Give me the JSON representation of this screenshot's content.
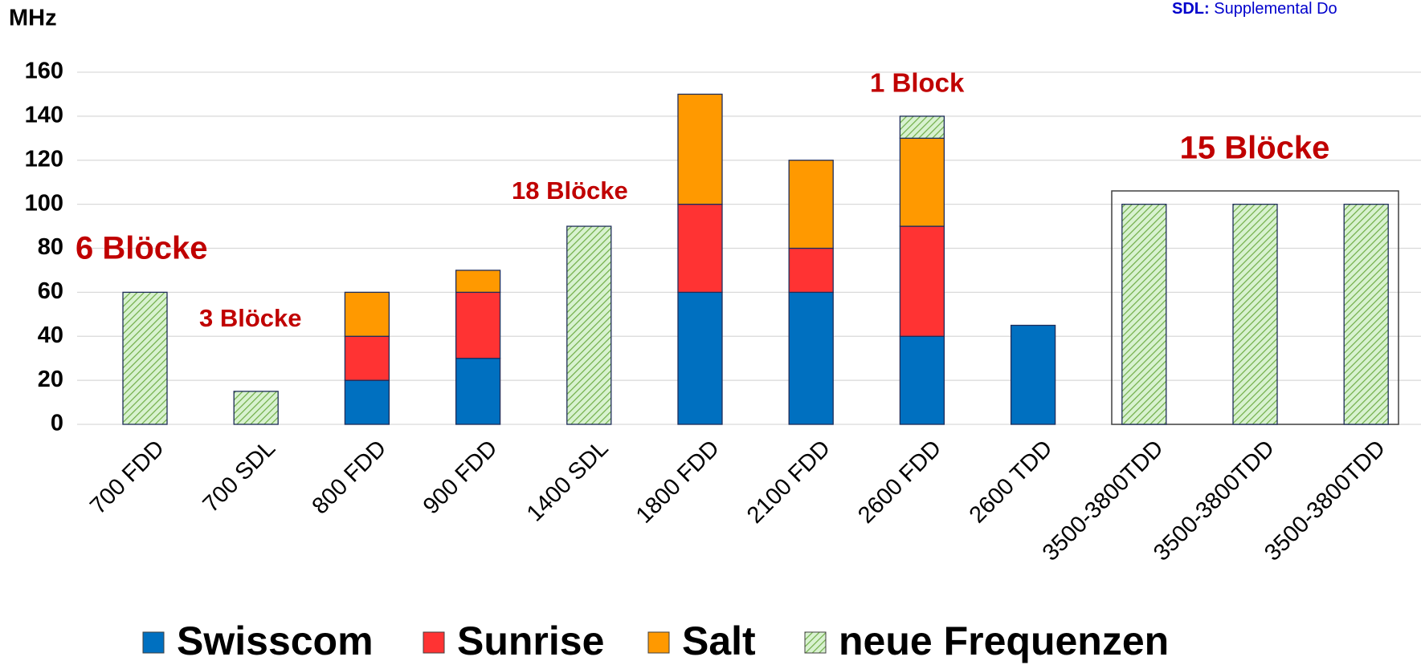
{
  "chart_data": {
    "type": "stacked_bar",
    "unit_label": "MHz",
    "note": {
      "term": "SDL:",
      "text": "Supplemental Do"
    },
    "categories": [
      "700 FDD",
      "700 SDL",
      "800 FDD",
      "900 FDD",
      "1400 SDL",
      "1800 FDD",
      "2100 FDD",
      "2600 FDD",
      "2600 TDD",
      "3500-3800TDD",
      "3500-3800TDD",
      "3500-3800TDD"
    ],
    "series": [
      {
        "name": "Swisscom",
        "color": "#0070c0",
        "values": [
          0,
          0,
          20,
          30,
          0,
          60,
          60,
          40,
          45,
          0,
          0,
          0
        ]
      },
      {
        "name": "Sunrise",
        "color": "#ff3333",
        "values": [
          0,
          0,
          20,
          30,
          0,
          40,
          20,
          50,
          0,
          0,
          0,
          0
        ]
      },
      {
        "name": "Salt",
        "color": "#ff9900",
        "values": [
          0,
          0,
          20,
          10,
          0,
          50,
          40,
          40,
          0,
          0,
          0,
          0
        ]
      },
      {
        "name": "neue Frequenzen",
        "color": "#70ad47",
        "hatched": true,
        "values": [
          60,
          15,
          0,
          0,
          90,
          0,
          0,
          10,
          0,
          100,
          100,
          100
        ]
      }
    ],
    "annotations": [
      "6 Blöcke",
      "3 Blöcke",
      "18 Blöcke",
      "1 Block",
      "15 Blöcke"
    ],
    "ylim": [
      0,
      160
    ],
    "yticks": [
      0,
      20,
      40,
      60,
      80,
      100,
      120,
      140,
      160
    ],
    "grid": true,
    "legend": "bottom"
  }
}
